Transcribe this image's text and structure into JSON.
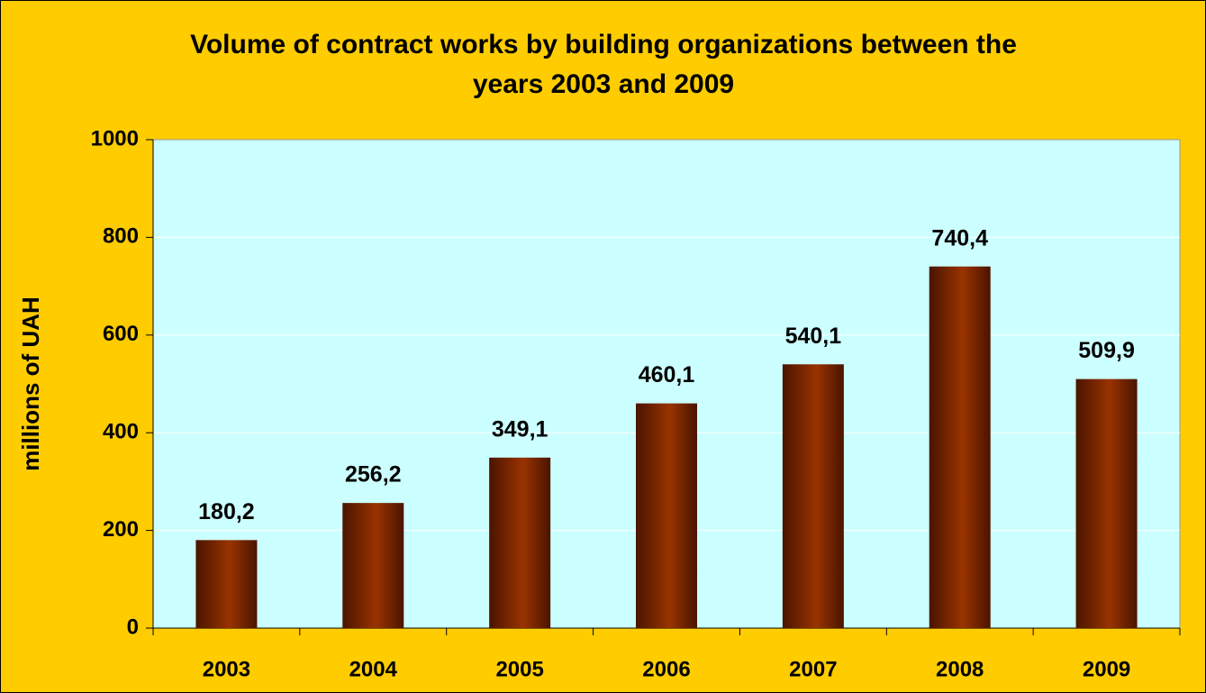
{
  "chart_data": {
    "type": "bar",
    "title": "Volume of contract works by building organizations between the years 2003 and 2009",
    "y_label": "millions of UAH",
    "categories": [
      "2003",
      "2004",
      "2005",
      "2006",
      "2007",
      "2008",
      "2009"
    ],
    "values": [
      180.2,
      256.2,
      349.1,
      460.1,
      540.1,
      740.4,
      509.9
    ],
    "value_labels": [
      "180,2",
      "256,2",
      "349,1",
      "460,1",
      "540,1",
      "740,4",
      "509,9"
    ],
    "color": "#993300",
    "ylim": [
      0,
      1000
    ],
    "yticks": [
      0,
      200,
      400,
      600,
      800,
      1000
    ],
    "grid": true
  }
}
